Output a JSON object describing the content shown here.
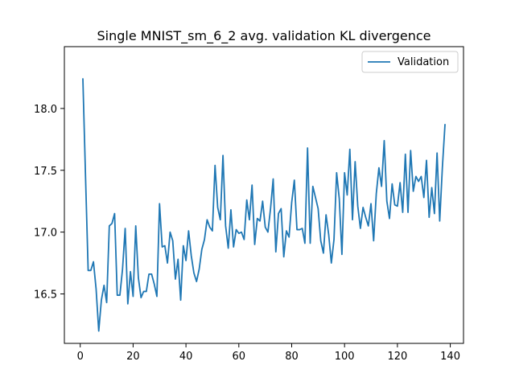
{
  "chart_data": {
    "type": "line",
    "title": "Single MNIST_sm_6_2 avg. validation KL divergence",
    "xlabel": "",
    "ylabel": "",
    "xlim": [
      -6,
      145
    ],
    "ylim": [
      16.1,
      18.5
    ],
    "xticks": [
      0,
      20,
      40,
      60,
      80,
      100,
      120,
      140
    ],
    "yticks": [
      16.5,
      17.0,
      17.5,
      18.0
    ],
    "ytick_labels": [
      "16.5",
      "17.0",
      "17.5",
      "18.0"
    ],
    "legend_position": "top-right",
    "grid": false,
    "series": [
      {
        "name": "Validation",
        "color": "#1f77b4",
        "x": [
          1,
          2,
          3,
          4,
          5,
          6,
          7,
          8,
          9,
          10,
          11,
          12,
          13,
          14,
          15,
          16,
          17,
          18,
          19,
          20,
          21,
          22,
          23,
          24,
          25,
          26,
          27,
          28,
          29,
          30,
          31,
          32,
          33,
          34,
          35,
          36,
          37,
          38,
          39,
          40,
          41,
          42,
          43,
          44,
          45,
          46,
          47,
          48,
          49,
          50,
          51,
          52,
          53,
          54,
          55,
          56,
          57,
          58,
          59,
          60,
          61,
          62,
          63,
          64,
          65,
          66,
          67,
          68,
          69,
          70,
          71,
          72,
          73,
          74,
          75,
          76,
          77,
          78,
          79,
          80,
          81,
          82,
          83,
          84,
          85,
          86,
          87,
          88,
          89,
          90,
          91,
          92,
          93,
          94,
          95,
          96,
          97,
          98,
          99,
          100,
          101,
          102,
          103,
          104,
          105,
          106,
          107,
          108,
          109,
          110,
          111,
          112,
          113,
          114,
          115,
          116,
          117,
          118,
          119,
          120,
          121,
          122,
          123,
          124,
          125,
          126,
          127,
          128,
          129,
          130,
          131,
          132,
          133,
          134,
          135,
          136,
          137,
          138
        ],
        "y": [
          18.24,
          17.45,
          16.69,
          16.69,
          16.76,
          16.54,
          16.2,
          16.45,
          16.57,
          16.43,
          17.05,
          17.07,
          17.15,
          16.49,
          16.49,
          16.7,
          17.03,
          16.42,
          16.68,
          16.48,
          17.05,
          16.63,
          16.47,
          16.52,
          16.52,
          16.66,
          16.66,
          16.58,
          16.48,
          17.23,
          16.88,
          16.89,
          16.75,
          17.0,
          16.93,
          16.62,
          16.78,
          16.45,
          16.89,
          16.77,
          17.01,
          16.81,
          16.67,
          16.6,
          16.7,
          16.86,
          16.94,
          17.1,
          17.04,
          17.01,
          17.54,
          17.2,
          17.1,
          17.62,
          17.05,
          16.87,
          17.18,
          16.88,
          17.02,
          16.99,
          17.0,
          16.94,
          17.26,
          17.1,
          17.38,
          16.9,
          17.11,
          17.09,
          17.25,
          17.04,
          17.0,
          17.19,
          17.43,
          16.84,
          17.15,
          17.19,
          16.8,
          17.01,
          16.96,
          17.24,
          17.42,
          17.02,
          17.02,
          17.03,
          16.91,
          17.68,
          16.91,
          17.37,
          17.28,
          17.19,
          16.93,
          16.83,
          17.14,
          16.98,
          16.75,
          16.94,
          17.48,
          17.27,
          16.82,
          17.48,
          17.3,
          17.67,
          17.1,
          17.57,
          17.21,
          17.03,
          17.2,
          17.12,
          17.05,
          17.23,
          16.93,
          17.31,
          17.52,
          17.37,
          17.74,
          17.25,
          17.11,
          17.39,
          17.22,
          17.21,
          17.4,
          17.16,
          17.63,
          17.16,
          17.66,
          17.33,
          17.45,
          17.41,
          17.45,
          17.28,
          17.58,
          17.12,
          17.36,
          17.15,
          17.64,
          17.09,
          17.52,
          17.87
        ]
      }
    ]
  }
}
